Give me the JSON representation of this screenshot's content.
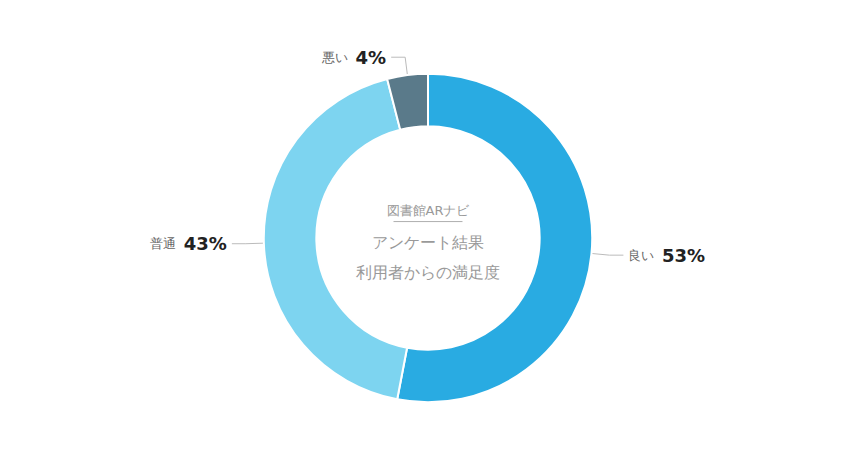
{
  "chart_data": {
    "type": "pie",
    "categories": [
      "良い",
      "普通",
      "悪い"
    ],
    "values": [
      53,
      43,
      4
    ],
    "value_labels": [
      "53%",
      "43%",
      "4%"
    ],
    "colors": [
      "#29ABE2",
      "#7DD4F0",
      "#5A7A8A"
    ],
    "annotations": [
      "図書館ARナビ",
      "アンケート結果",
      "利用者からの満足度"
    ],
    "data_labels": true
  }
}
